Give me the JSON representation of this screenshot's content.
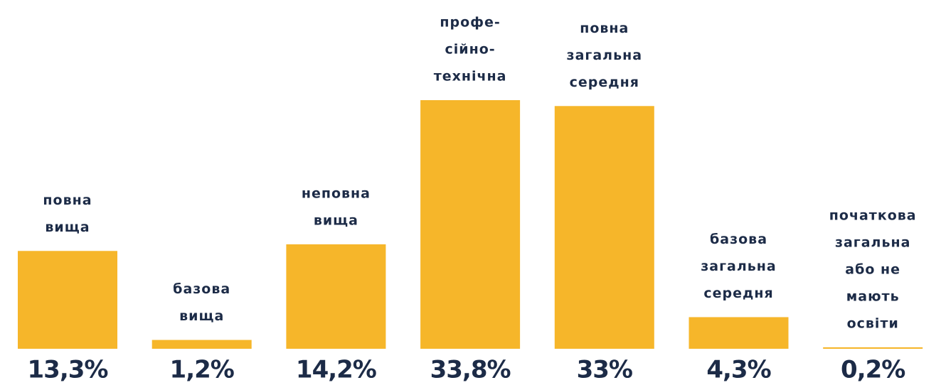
{
  "chart_data": {
    "type": "bar",
    "categories": [
      [
        "повна",
        "вища"
      ],
      [
        "базова",
        "вища"
      ],
      [
        "неповна",
        "вища"
      ],
      [
        "профе-",
        "сійно-",
        "технічна"
      ],
      [
        "повна",
        "загальна",
        "середня"
      ],
      [
        "базова",
        "загальна",
        "середня"
      ],
      [
        "початкова",
        "загальна",
        "або не",
        "мають",
        "освіти"
      ]
    ],
    "values": [
      13.3,
      1.2,
      14.2,
      33.8,
      33,
      4.3,
      0.2
    ],
    "value_labels": [
      "13,3%",
      "1,2%",
      "14,2%",
      "33,8%",
      "33%",
      "4,3%",
      "0,2%"
    ],
    "color": "#f6b62a"
  }
}
